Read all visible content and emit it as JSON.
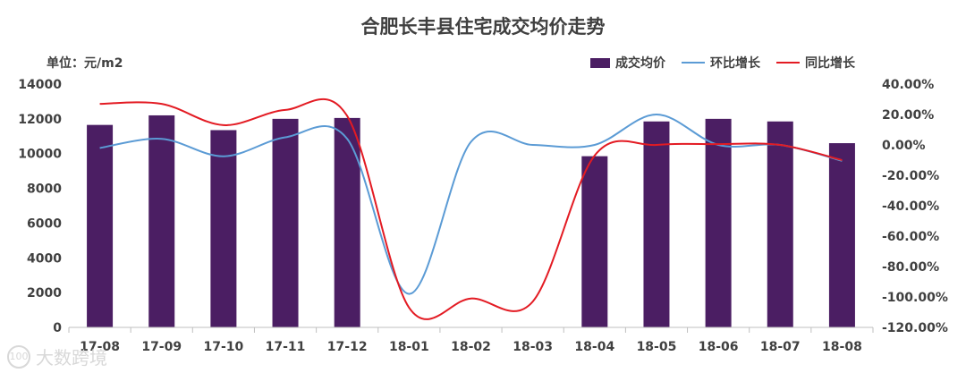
{
  "chart_data": {
    "type": "bar",
    "title": "合肥长丰县住宅成交均价走势",
    "unit_label": "单位：元/m2",
    "categories": [
      "17-08",
      "17-09",
      "17-10",
      "17-11",
      "17-12",
      "18-01",
      "18-02",
      "18-03",
      "18-04",
      "18-05",
      "18-06",
      "18-07",
      "18-08"
    ],
    "series": [
      {
        "name": "成交均价",
        "kind": "bar",
        "axis": "left",
        "color": "#4b1e63",
        "values": [
          11650,
          12200,
          11350,
          12000,
          12050,
          null,
          null,
          null,
          9850,
          11850,
          12000,
          11850,
          10600
        ]
      },
      {
        "name": "环比增长",
        "kind": "line",
        "axis": "right",
        "color": "#5b9bd5",
        "values": [
          -2.0,
          4.0,
          -7.5,
          5.0,
          4.0,
          -98.0,
          2.0,
          0.0,
          0.0,
          20.0,
          0.0,
          0.0,
          -10.5
        ]
      },
      {
        "name": "同比增长",
        "kind": "line",
        "axis": "right",
        "color": "#e31b23",
        "values": [
          27.0,
          27.0,
          13.0,
          23.0,
          19.0,
          -107.0,
          -101.0,
          -103.0,
          -7.0,
          0.0,
          0.5,
          0.0,
          -10.0
        ]
      }
    ],
    "y_left": {
      "min": 0,
      "max": 14000,
      "ticks": [
        0,
        2000,
        4000,
        6000,
        8000,
        10000,
        12000,
        14000
      ]
    },
    "y_right": {
      "min": -120,
      "max": 40,
      "ticks": [
        "40.00%",
        "20.00%",
        "0.00%",
        "-20.00%",
        "-40.00%",
        "-60.00%",
        "-80.00%",
        "-100.00%",
        "-120.00%"
      ]
    },
    "grid": false,
    "legend_position": "top-right"
  },
  "watermark": "大数跨境"
}
